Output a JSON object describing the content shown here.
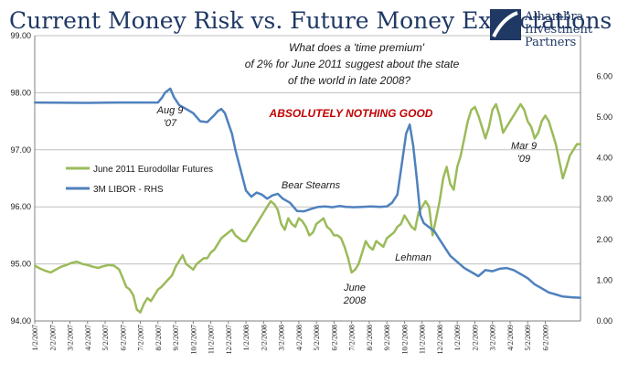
{
  "chart_data": {
    "type": "line",
    "title": "Current Money Risk vs. Future Money Expectations",
    "logo": {
      "line1": "Alhambra",
      "line2": "Investment",
      "line3": "Partners"
    },
    "y_left": {
      "lim": [
        94.0,
        99.0
      ],
      "ticks": [
        "94.00",
        "95.00",
        "96.00",
        "97.00",
        "98.00",
        "99.00"
      ]
    },
    "y_right": {
      "lim": [
        0.0,
        7.0
      ],
      "ticks": [
        "0.00",
        "1.00",
        "2.00",
        "3.00",
        "4.00",
        "5.00",
        "6.00"
      ]
    },
    "x_range": [
      "2007-01-02",
      "2009-07-31"
    ],
    "x_ticks": [
      "1/2/2007",
      "2/2/2007",
      "3/2/2007",
      "4/2/2007",
      "5/2/2007",
      "6/2/2007",
      "7/2/2007",
      "8/2/2007",
      "9/2/2007",
      "10/2/2007",
      "11/2/2007",
      "12/2/2007",
      "1/2/2008",
      "2/2/2008",
      "3/2/2008",
      "4/2/2008",
      "5/2/2008",
      "6/2/2008",
      "7/2/2008",
      "8/2/2008",
      "9/2/2008",
      "10/2/2008",
      "11/2/2008",
      "12/2/2008",
      "1/2/2009",
      "2/2/2009",
      "3/2/2009",
      "4/2/2009",
      "5/2/2009",
      "6/2/2009"
    ],
    "legend": {
      "placement": "left-middle"
    },
    "series": [
      {
        "name": "June 2011 Eurodollar Futures",
        "axis": "left",
        "color": "#9bbb59",
        "x": [
          0,
          0.3,
          0.6,
          0.9,
          1.2,
          1.5,
          1.8,
          2.1,
          2.4,
          2.7,
          3.0,
          3.3,
          3.6,
          3.9,
          4.2,
          4.5,
          4.8,
          5.0,
          5.2,
          5.4,
          5.6,
          5.8,
          6.0,
          6.2,
          6.4,
          6.6,
          6.8,
          7.0,
          7.2,
          7.5,
          7.8,
          8.0,
          8.2,
          8.4,
          8.6,
          8.8,
          9.0,
          9.2,
          9.4,
          9.6,
          9.8,
          10.0,
          10.2,
          10.4,
          10.6,
          10.8,
          11.0,
          11.2,
          11.4,
          11.6,
          11.8,
          12.0,
          12.2,
          12.4,
          12.6,
          12.8,
          13.0,
          13.2,
          13.4,
          13.6,
          13.8,
          14.0,
          14.2,
          14.4,
          14.6,
          14.8,
          15.0,
          15.2,
          15.4,
          15.6,
          15.8,
          16.0,
          16.2,
          16.4,
          16.6,
          16.8,
          17.0,
          17.2,
          17.4,
          17.6,
          17.8,
          18.0,
          18.2,
          18.4,
          18.6,
          18.8,
          19.0,
          19.2,
          19.4,
          19.6,
          19.8,
          20.0,
          20.2,
          20.4,
          20.6,
          20.8,
          21.0,
          21.2,
          21.4,
          21.6,
          21.8,
          22.0,
          22.2,
          22.4,
          22.6,
          22.8,
          23.0,
          23.2,
          23.4,
          23.6,
          23.8,
          24.0,
          24.2,
          24.4,
          24.6,
          24.8,
          25.0,
          25.2,
          25.4,
          25.6,
          25.8,
          26.0,
          26.2,
          26.4,
          26.6,
          26.8,
          27.0,
          27.2,
          27.4,
          27.6,
          27.8,
          28.0,
          28.2,
          28.4,
          28.6,
          28.8,
          29.0,
          29.2,
          29.4,
          29.6,
          29.8,
          30.0,
          30.2,
          30.4,
          30.6,
          30.8,
          31.0
        ],
        "values": [
          94.97,
          94.92,
          94.88,
          94.85,
          94.9,
          94.95,
          94.98,
          95.02,
          95.04,
          95.0,
          94.98,
          94.95,
          94.93,
          94.96,
          94.98,
          94.97,
          94.9,
          94.75,
          94.6,
          94.55,
          94.45,
          94.2,
          94.15,
          94.3,
          94.4,
          94.35,
          94.45,
          94.55,
          94.6,
          94.7,
          94.8,
          94.95,
          95.05,
          95.15,
          95.0,
          94.95,
          94.9,
          95.0,
          95.05,
          95.1,
          95.1,
          95.2,
          95.25,
          95.35,
          95.45,
          95.5,
          95.55,
          95.6,
          95.5,
          95.45,
          95.4,
          95.4,
          95.5,
          95.6,
          95.7,
          95.8,
          95.9,
          96.0,
          96.1,
          96.05,
          95.95,
          95.7,
          95.6,
          95.8,
          95.7,
          95.65,
          95.8,
          95.75,
          95.65,
          95.5,
          95.55,
          95.7,
          95.75,
          95.8,
          95.65,
          95.6,
          95.5,
          95.5,
          95.45,
          95.3,
          95.1,
          94.85,
          94.9,
          95.0,
          95.2,
          95.4,
          95.3,
          95.25,
          95.4,
          95.35,
          95.3,
          95.45,
          95.5,
          95.55,
          95.65,
          95.7,
          95.85,
          95.75,
          95.65,
          95.6,
          95.9,
          96.0,
          96.1,
          96.0,
          95.5,
          95.8,
          96.1,
          96.5,
          96.7,
          96.4,
          96.3,
          96.7,
          96.9,
          97.2,
          97.5,
          97.7,
          97.75,
          97.6,
          97.4,
          97.2,
          97.4,
          97.7,
          97.8,
          97.6,
          97.3,
          97.4,
          97.5,
          97.6,
          97.7,
          97.8,
          97.7,
          97.5,
          97.4,
          97.2,
          97.3,
          97.5,
          97.6,
          97.5,
          97.3,
          97.1,
          96.8,
          96.5,
          96.7,
          96.9,
          97.0,
          97.1,
          97.1
        ],
        "legend_label": "June 2011 Eurodollar Futures"
      },
      {
        "name": "3M LIBOR - RHS",
        "axis": "right",
        "color": "#4f81bd",
        "x": [
          0,
          3.0,
          4.8,
          7.0,
          7.25,
          7.4,
          7.7,
          7.9,
          8.2,
          8.6,
          9.0,
          9.4,
          9.8,
          10.2,
          10.4,
          10.6,
          10.8,
          11.0,
          11.2,
          11.4,
          11.7,
          12.0,
          12.3,
          12.6,
          12.9,
          13.2,
          13.5,
          13.8,
          14.1,
          14.5,
          14.9,
          15.3,
          15.7,
          16.1,
          16.5,
          16.9,
          17.3,
          17.7,
          18.1,
          18.6,
          19.1,
          19.6,
          20.0,
          20.3,
          20.6,
          20.9,
          21.1,
          21.3,
          21.5,
          21.7,
          21.9,
          22.1,
          22.4,
          22.7,
          23.0,
          23.3,
          23.6,
          24.0,
          24.4,
          24.8,
          25.2,
          25.6,
          26.0,
          26.4,
          26.8,
          27.2,
          27.6,
          28.0,
          28.4,
          28.8,
          29.2,
          29.6,
          30.0,
          30.5,
          31.0
        ],
        "values": [
          5.36,
          5.35,
          5.36,
          5.36,
          5.49,
          5.6,
          5.7,
          5.5,
          5.3,
          5.2,
          5.1,
          4.9,
          4.88,
          5.05,
          5.15,
          5.2,
          5.1,
          4.85,
          4.6,
          4.2,
          3.7,
          3.2,
          3.05,
          3.15,
          3.1,
          3.0,
          3.08,
          3.12,
          3.0,
          2.9,
          2.7,
          2.69,
          2.75,
          2.8,
          2.81,
          2.79,
          2.82,
          2.8,
          2.79,
          2.8,
          2.81,
          2.8,
          2.81,
          2.9,
          3.1,
          4.0,
          4.6,
          4.82,
          4.3,
          3.5,
          2.6,
          2.4,
          2.3,
          2.2,
          2.0,
          1.8,
          1.6,
          1.45,
          1.3,
          1.2,
          1.1,
          1.25,
          1.22,
          1.28,
          1.3,
          1.25,
          1.15,
          1.05,
          0.9,
          0.8,
          0.7,
          0.65,
          0.6,
          0.58,
          0.57
        ],
        "legend_label": "3M LIBOR - RHS"
      }
    ],
    "annotations": {
      "question_line1": "What does a 'time premium'",
      "question_line2": "of 2% for June 2011 suggest about the state",
      "question_line3": "of the world in late 2008?",
      "headline": "ABSOLUTELY NOTHING GOOD",
      "aug_line1": "Aug 9",
      "aug_line2": "'07",
      "bear": "Bear Stearns",
      "june_line1": "June",
      "june_line2": "2008",
      "lehman": "Lehman",
      "mar_line1": "Mar 9",
      "mar_line2": "'09"
    },
    "colors": {
      "headline": "#c00000",
      "grid": "#bfbfbf",
      "axis": "#808080",
      "title": "#1f3864",
      "logo": "#1f3864"
    }
  }
}
